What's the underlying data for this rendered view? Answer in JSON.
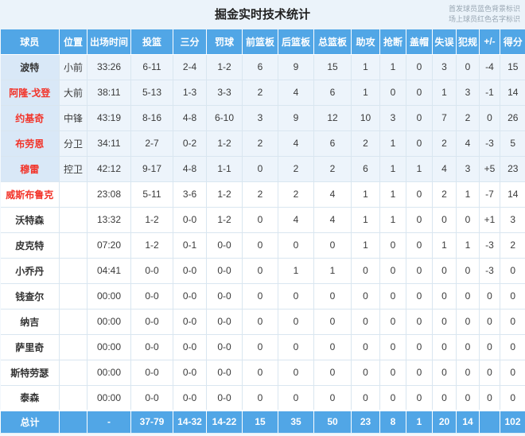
{
  "title": "掘金实时技术统计",
  "legend": {
    "starter_note": "首发球员蓝色背景标识",
    "oncourt_note": "场上球员红色名字标识"
  },
  "colors": {
    "header_blue": "#51a6e6",
    "starter_row_bg": "#edf4fb",
    "starter_name_bg": "#d9e8f7",
    "oncourt_name_red": "#f2342a",
    "grid_border": "#d9e6f0"
  },
  "table": {
    "columns": [
      "球员",
      "位置",
      "出场时间",
      "投篮",
      "三分",
      "罚球",
      "前篮板",
      "后篮板",
      "总篮板",
      "助攻",
      "抢断",
      "盖帽",
      "失误",
      "犯规",
      "+/-",
      "得分"
    ],
    "rows": [
      {
        "name": "波特",
        "starter": true,
        "oncourt": false,
        "cells": [
          "小前",
          "33:26",
          "6-11",
          "2-4",
          "1-2",
          "6",
          "9",
          "15",
          "1",
          "1",
          "0",
          "3",
          "0",
          "-4",
          "15"
        ]
      },
      {
        "name": "阿隆-戈登",
        "starter": true,
        "oncourt": true,
        "cells": [
          "大前",
          "38:11",
          "5-13",
          "1-3",
          "3-3",
          "2",
          "4",
          "6",
          "1",
          "0",
          "0",
          "1",
          "3",
          "-1",
          "14"
        ]
      },
      {
        "name": "约基奇",
        "starter": true,
        "oncourt": true,
        "cells": [
          "中锋",
          "43:19",
          "8-16",
          "4-8",
          "6-10",
          "3",
          "9",
          "12",
          "10",
          "3",
          "0",
          "7",
          "2",
          "0",
          "26"
        ]
      },
      {
        "name": "布劳恩",
        "starter": true,
        "oncourt": true,
        "cells": [
          "分卫",
          "34:11",
          "2-7",
          "0-2",
          "1-2",
          "2",
          "4",
          "6",
          "2",
          "1",
          "0",
          "2",
          "4",
          "-3",
          "5"
        ]
      },
      {
        "name": "穆雷",
        "starter": true,
        "oncourt": true,
        "cells": [
          "控卫",
          "42:12",
          "9-17",
          "4-8",
          "1-1",
          "0",
          "2",
          "2",
          "6",
          "1",
          "1",
          "4",
          "3",
          "+5",
          "23"
        ]
      },
      {
        "name": "威斯布鲁克",
        "starter": false,
        "oncourt": true,
        "cells": [
          "",
          "23:08",
          "5-11",
          "3-6",
          "1-2",
          "2",
          "2",
          "4",
          "1",
          "1",
          "0",
          "2",
          "1",
          "-7",
          "14"
        ]
      },
      {
        "name": "沃特森",
        "starter": false,
        "oncourt": false,
        "cells": [
          "",
          "13:32",
          "1-2",
          "0-0",
          "1-2",
          "0",
          "4",
          "4",
          "1",
          "1",
          "0",
          "0",
          "0",
          "+1",
          "3"
        ]
      },
      {
        "name": "皮克特",
        "starter": false,
        "oncourt": false,
        "cells": [
          "",
          "07:20",
          "1-2",
          "0-1",
          "0-0",
          "0",
          "0",
          "0",
          "1",
          "0",
          "0",
          "1",
          "1",
          "-3",
          "2"
        ]
      },
      {
        "name": "小乔丹",
        "starter": false,
        "oncourt": false,
        "cells": [
          "",
          "04:41",
          "0-0",
          "0-0",
          "0-0",
          "0",
          "1",
          "1",
          "0",
          "0",
          "0",
          "0",
          "0",
          "-3",
          "0"
        ]
      },
      {
        "name": "钱查尔",
        "starter": false,
        "oncourt": false,
        "cells": [
          "",
          "00:00",
          "0-0",
          "0-0",
          "0-0",
          "0",
          "0",
          "0",
          "0",
          "0",
          "0",
          "0",
          "0",
          "0",
          "0"
        ]
      },
      {
        "name": "纳吉",
        "starter": false,
        "oncourt": false,
        "cells": [
          "",
          "00:00",
          "0-0",
          "0-0",
          "0-0",
          "0",
          "0",
          "0",
          "0",
          "0",
          "0",
          "0",
          "0",
          "0",
          "0"
        ]
      },
      {
        "name": "萨里奇",
        "starter": false,
        "oncourt": false,
        "cells": [
          "",
          "00:00",
          "0-0",
          "0-0",
          "0-0",
          "0",
          "0",
          "0",
          "0",
          "0",
          "0",
          "0",
          "0",
          "0",
          "0"
        ]
      },
      {
        "name": "斯特劳瑟",
        "starter": false,
        "oncourt": false,
        "cells": [
          "",
          "00:00",
          "0-0",
          "0-0",
          "0-0",
          "0",
          "0",
          "0",
          "0",
          "0",
          "0",
          "0",
          "0",
          "0",
          "0"
        ]
      },
      {
        "name": "泰森",
        "starter": false,
        "oncourt": false,
        "cells": [
          "",
          "00:00",
          "0-0",
          "0-0",
          "0-0",
          "0",
          "0",
          "0",
          "0",
          "0",
          "0",
          "0",
          "0",
          "0",
          "0"
        ]
      }
    ],
    "total_row": {
      "name": "总计",
      "cells": [
        "",
        "-",
        "37-79",
        "14-32",
        "14-22",
        "15",
        "35",
        "50",
        "23",
        "8",
        "1",
        "20",
        "14",
        "",
        "102"
      ]
    }
  }
}
